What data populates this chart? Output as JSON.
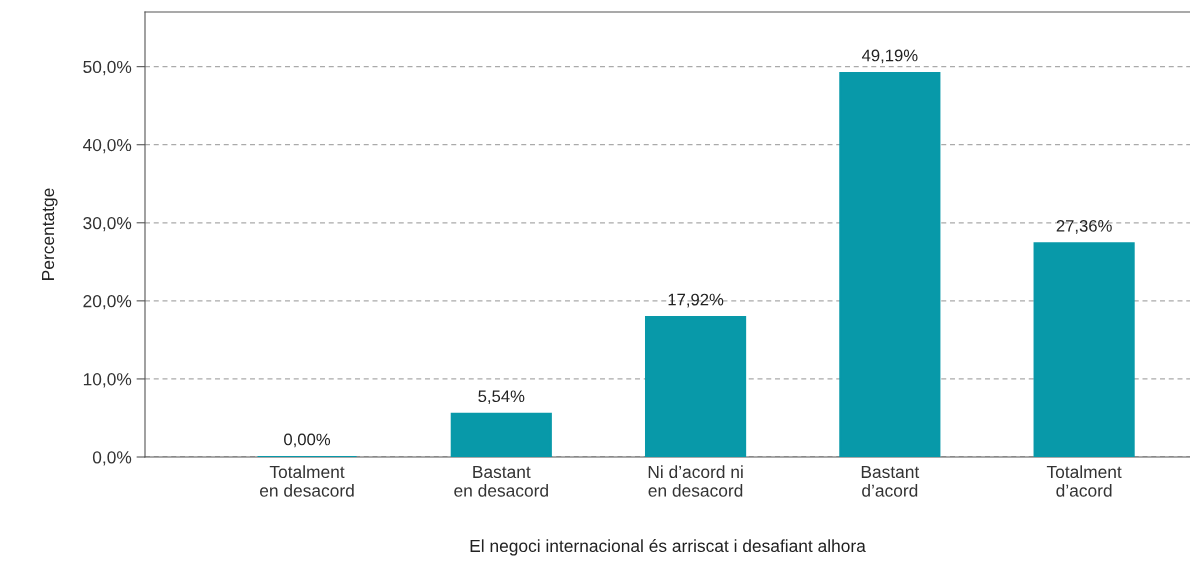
{
  "chart_data": {
    "type": "bar",
    "categories": [
      "Totalment\nen desacord",
      "Bastant\nen desacord",
      "Ni d’acord ni\nen desacord",
      "Bastant\nd’acord",
      "Totalment\nd’acord"
    ],
    "values": [
      0.0,
      5.54,
      17.92,
      49.19,
      27.36
    ],
    "value_labels": [
      "0,00%",
      "5,54%",
      "17,92%",
      "49,19%",
      "27,36%"
    ],
    "color": "#0899a9",
    "xlabel": "El negoci internacional és arriscat i desafiant alhora",
    "ylabel": "Percentatge",
    "ylim": [
      0,
      57
    ],
    "yticks": [
      {
        "value": 0,
        "label": "0,0%"
      },
      {
        "value": 10,
        "label": "10,0%"
      },
      {
        "value": 20,
        "label": "20,0%"
      },
      {
        "value": 30,
        "label": "30,0%"
      },
      {
        "value": 40,
        "label": "40,0%"
      },
      {
        "value": 50,
        "label": "50,0%"
      }
    ],
    "grid": "y"
  }
}
